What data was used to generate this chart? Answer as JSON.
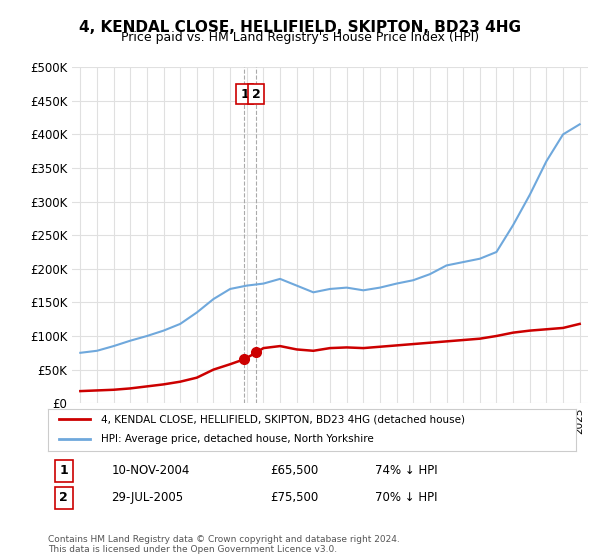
{
  "title": "4, KENDAL CLOSE, HELLIFIELD, SKIPTON, BD23 4HG",
  "subtitle": "Price paid vs. HM Land Registry's House Price Index (HPI)",
  "xlabel": "",
  "ylabel": "",
  "ylim": [
    0,
    500000
  ],
  "yticks": [
    0,
    50000,
    100000,
    150000,
    200000,
    250000,
    300000,
    350000,
    400000,
    450000,
    500000
  ],
  "ytick_labels": [
    "£0",
    "£50K",
    "£100K",
    "£150K",
    "£200K",
    "£250K",
    "£300K",
    "£350K",
    "£400K",
    "£450K",
    "£500K"
  ],
  "background_color": "#ffffff",
  "grid_color": "#e0e0e0",
  "sale1_date_num": 2004.86,
  "sale1_price": 65500,
  "sale1_label": "1",
  "sale1_display": "10-NOV-2004",
  "sale1_price_display": "£65,500",
  "sale1_hpi_pct": "74% ↓ HPI",
  "sale2_date_num": 2005.57,
  "sale2_price": 75500,
  "sale2_label": "2",
  "sale2_display": "29-JUL-2005",
  "sale2_price_display": "£75,500",
  "sale2_hpi_pct": "70% ↓ HPI",
  "hpi_color": "#6fa8dc",
  "property_color": "#cc0000",
  "legend_property": "4, KENDAL CLOSE, HELLIFIELD, SKIPTON, BD23 4HG (detached house)",
  "legend_hpi": "HPI: Average price, detached house, North Yorkshire",
  "footer": "Contains HM Land Registry data © Crown copyright and database right 2024.\nThis data is licensed under the Open Government Licence v3.0.",
  "hpi_years": [
    1995,
    1996,
    1997,
    1998,
    1999,
    2000,
    2001,
    2002,
    2003,
    2004,
    2005,
    2006,
    2007,
    2008,
    2009,
    2010,
    2011,
    2012,
    2013,
    2014,
    2015,
    2016,
    2017,
    2018,
    2019,
    2020,
    2021,
    2022,
    2023,
    2024,
    2025
  ],
  "hpi_values": [
    75000,
    78000,
    85000,
    93000,
    100000,
    108000,
    118000,
    135000,
    155000,
    170000,
    175000,
    178000,
    185000,
    175000,
    165000,
    170000,
    172000,
    168000,
    172000,
    178000,
    183000,
    192000,
    205000,
    210000,
    215000,
    225000,
    265000,
    310000,
    360000,
    400000,
    415000
  ],
  "property_years": [
    1995,
    1996,
    1997,
    1998,
    1999,
    2000,
    2001,
    2002,
    2003,
    2004.0,
    2004.86,
    2005.57,
    2006,
    2007,
    2008,
    2009,
    2010,
    2011,
    2012,
    2013,
    2014,
    2015,
    2016,
    2017,
    2018,
    2019,
    2020,
    2021,
    2022,
    2023,
    2024,
    2025
  ],
  "property_values": [
    18000,
    19000,
    20000,
    22000,
    25000,
    28000,
    32000,
    38000,
    50000,
    58000,
    65500,
    75500,
    82000,
    85000,
    80000,
    78000,
    82000,
    83000,
    82000,
    84000,
    86000,
    88000,
    90000,
    92000,
    94000,
    96000,
    100000,
    105000,
    108000,
    110000,
    112000,
    118000
  ]
}
